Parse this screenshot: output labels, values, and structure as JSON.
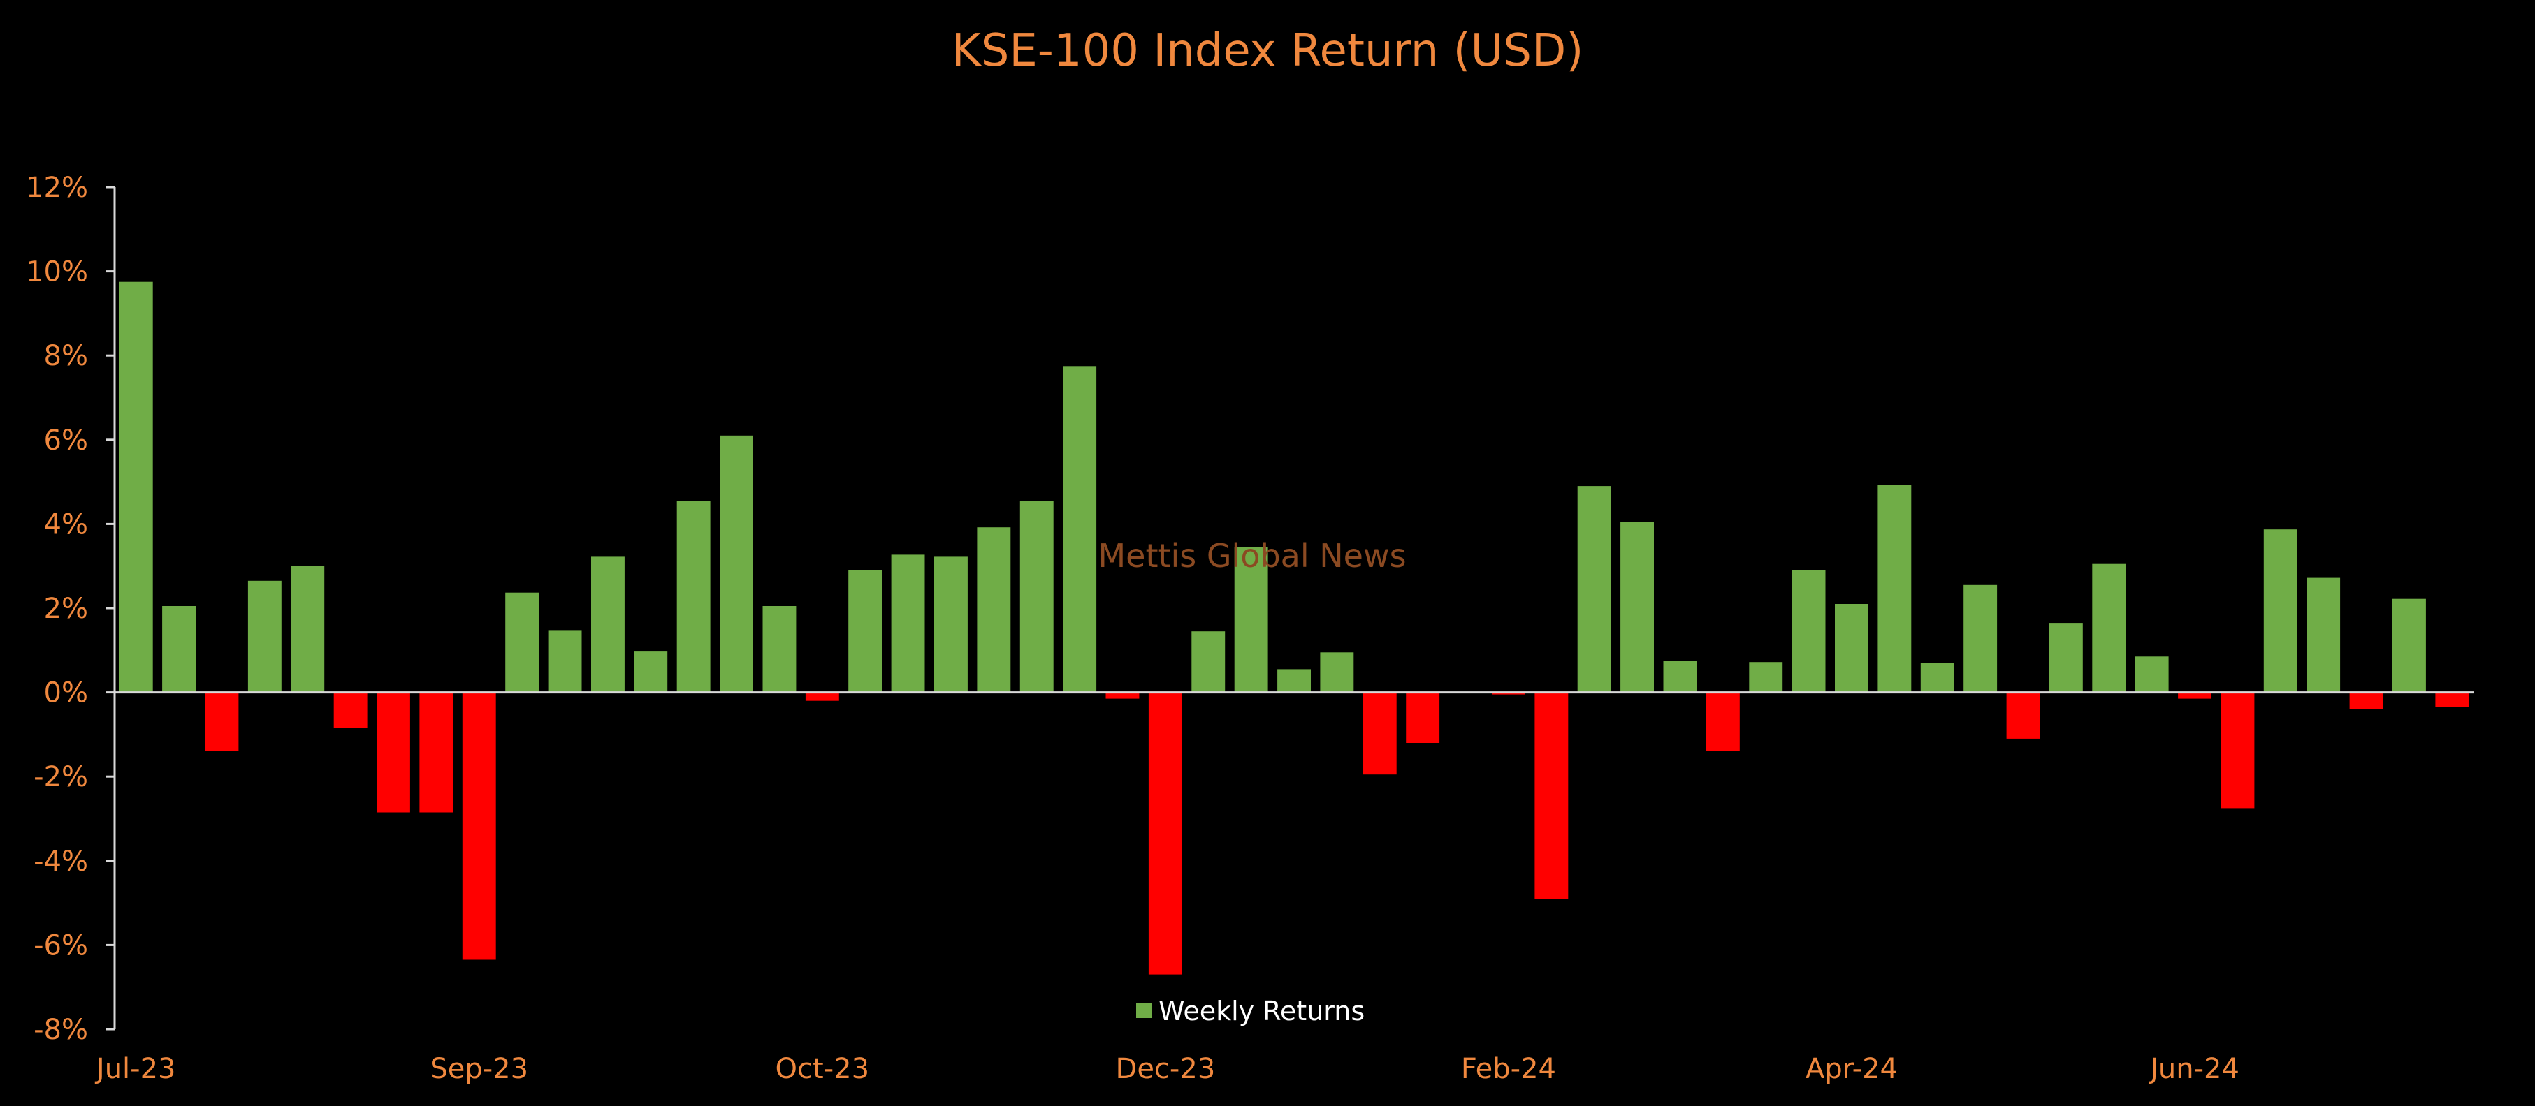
{
  "colors": {
    "background": "#000000",
    "positive": "#70AD47",
    "negative": "#FF0000",
    "text_accent": "#F0883E",
    "watermark": "#8B4A22",
    "axis": "#D9D9D9",
    "legend_text": "#FFFFFF"
  },
  "watermark": "Mettis Global News",
  "chart_data": {
    "type": "bar",
    "title": "KSE-100 Index Return (USD)",
    "xlabel": "",
    "ylabel": "",
    "ylim": [
      -8,
      12
    ],
    "y_tick_step": 2,
    "y_tick_labels": [
      "12%",
      "10%",
      "8%",
      "6%",
      "4%",
      "2%",
      "0%",
      "-2%",
      "-4%",
      "-6%",
      "-8%"
    ],
    "x_tick_labels": [
      {
        "label": "Jul-23",
        "index": 0
      },
      {
        "label": "Sep-23",
        "index": 8
      },
      {
        "label": "Oct-23",
        "index": 16
      },
      {
        "label": "Dec-23",
        "index": 24
      },
      {
        "label": "Feb-24",
        "index": 32
      },
      {
        "label": "Apr-24",
        "index": 40
      },
      {
        "label": "Jun-24",
        "index": 48
      }
    ],
    "legend": {
      "position": "bottom-center",
      "entries": [
        "Weekly Returns"
      ]
    },
    "grid": false,
    "series": [
      {
        "name": "Weekly Returns",
        "values": [
          9.75,
          2.05,
          -1.4,
          2.65,
          3.0,
          -0.85,
          -2.85,
          -2.85,
          -6.35,
          2.37,
          1.48,
          3.22,
          0.97,
          4.55,
          6.1,
          2.05,
          -0.2,
          2.9,
          3.27,
          3.22,
          3.92,
          4.55,
          7.75,
          -0.15,
          -6.7,
          1.45,
          3.45,
          0.55,
          0.95,
          -1.95,
          -1.2,
          0.0,
          -0.05,
          -4.9,
          4.9,
          4.05,
          0.75,
          -1.4,
          0.72,
          2.9,
          2.1,
          4.93,
          0.7,
          2.55,
          -1.1,
          1.65,
          3.05,
          0.85,
          -0.15,
          -2.75,
          3.87,
          2.72,
          -0.4,
          2.22,
          -0.35
        ]
      }
    ]
  }
}
